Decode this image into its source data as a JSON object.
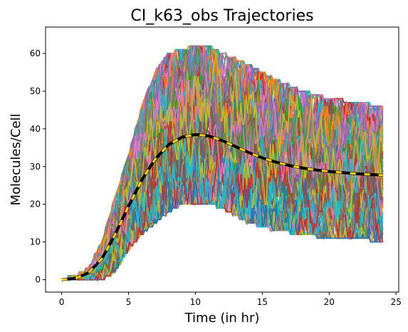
{
  "chart_data": {
    "type": "line",
    "title": "CI_k63_obs Trajectories",
    "xlabel": "Time (in hr)",
    "ylabel": "Molecules/Cell",
    "xlim": [
      -1.2,
      25.2
    ],
    "ylim": [
      -3.3,
      67
    ],
    "xticks": [
      0,
      5,
      10,
      15,
      20,
      25
    ],
    "yticks": [
      0,
      10,
      20,
      30,
      40,
      50,
      60
    ],
    "grid": false,
    "legend": "none",
    "trajectory_envelope": {
      "description_series": "stochastic trajectories (many colored lines)",
      "x": [
        0,
        1,
        2,
        3,
        4,
        5,
        6,
        7,
        8,
        9,
        10,
        11,
        12,
        14,
        16,
        18,
        20,
        22,
        24
      ],
      "lower": [
        0,
        0,
        0,
        0,
        2,
        8,
        12,
        15,
        18,
        20,
        20,
        20,
        19,
        15,
        13,
        12,
        11,
        11,
        10
      ],
      "upper": [
        0,
        1,
        3,
        10,
        22,
        33,
        46,
        55,
        60,
        61,
        62,
        62,
        60,
        57,
        53,
        50,
        48,
        47,
        46
      ]
    },
    "series": [
      {
        "style": "black dashed with yellow dashes",
        "x": [
          0,
          1,
          2,
          3,
          4,
          5,
          6,
          7,
          8,
          9,
          10,
          11,
          12,
          13,
          14,
          15,
          16,
          17,
          18,
          19,
          20,
          21,
          22,
          23,
          24
        ],
        "y": [
          0,
          0.3,
          1.8,
          5.5,
          12,
          19.5,
          26.5,
          32,
          35.8,
          37.8,
          38.5,
          38.1,
          36.9,
          35.3,
          33.7,
          32.3,
          31.2,
          30.3,
          29.6,
          29.1,
          28.7,
          28.4,
          28.1,
          27.9,
          27.7
        ]
      }
    ],
    "palette": [
      "#1f77b4",
      "#ff7f0e",
      "#2ca02c",
      "#d62728",
      "#9467bd",
      "#8c564b",
      "#e377c2",
      "#7f7f7f",
      "#bcbd22",
      "#17becf"
    ]
  }
}
